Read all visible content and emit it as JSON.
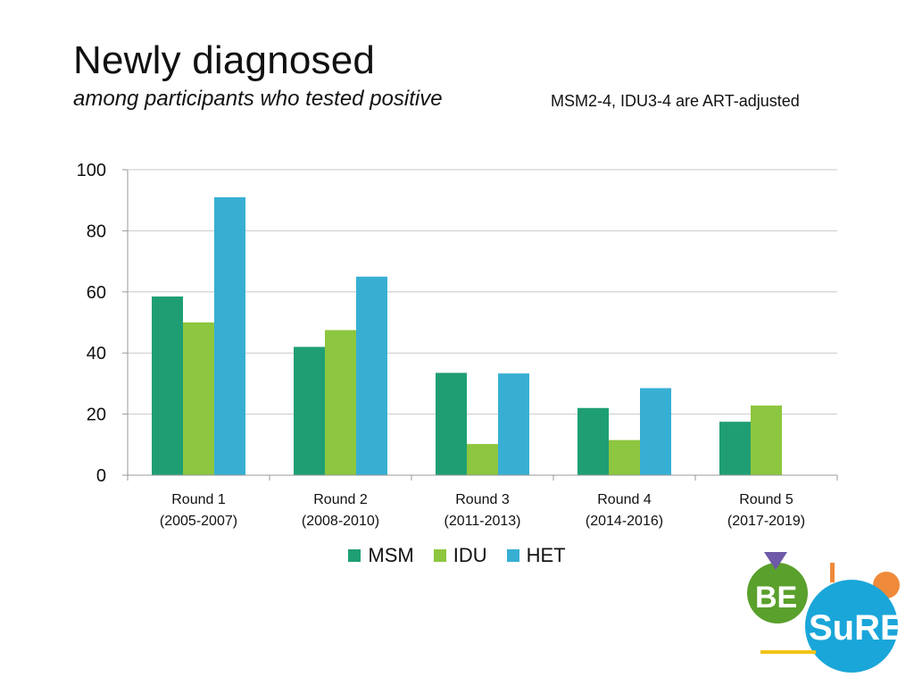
{
  "header": {
    "title": "Newly diagnosed",
    "subtitle": "among participants who tested positive",
    "note": "MSM2-4, IDU3-4 are ART-adjusted"
  },
  "colors": {
    "MSM": "#1f9e74",
    "IDU": "#8dc63f",
    "HET": "#37afd3",
    "grid": "#c8c8c8",
    "axis": "#9a9a9a"
  },
  "chart_data": {
    "type": "bar",
    "title": "Newly diagnosed",
    "categories": [
      [
        "Round 1",
        "(2005-2007)"
      ],
      [
        "Round 2",
        "(2008-2010)"
      ],
      [
        "Round 3",
        "(2011-2013)"
      ],
      [
        "Round 4",
        "(2014-2016)"
      ],
      [
        "Round 5",
        "(2017-2019)"
      ]
    ],
    "series": [
      {
        "name": "MSM",
        "values": [
          58.5,
          42,
          33.5,
          22,
          17.5
        ]
      },
      {
        "name": "IDU",
        "values": [
          50,
          47.5,
          10.2,
          11.5,
          22.8
        ]
      },
      {
        "name": "HET",
        "values": [
          91,
          65,
          33.3,
          28.5,
          null
        ]
      }
    ],
    "ylim": [
      0,
      100
    ],
    "yticks": [
      0,
      20,
      40,
      60,
      80,
      100
    ],
    "grid": true,
    "legend": "bottom-center",
    "xlabel": "",
    "ylabel": ""
  },
  "logo": {
    "text_top": "BE",
    "text_bottom": "SuRE",
    "colors": {
      "green": "#5aa02c",
      "blue": "#1aa6d9",
      "orange": "#ef8a3a",
      "purple": "#6e5aa8",
      "yellow": "#f0c419"
    }
  }
}
